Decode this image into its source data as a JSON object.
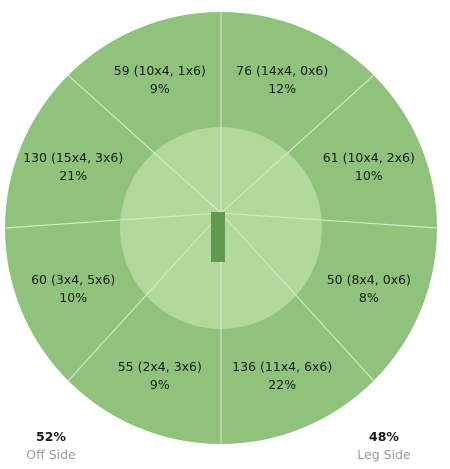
{
  "chart_data": {
    "type": "pie",
    "title": "",
    "segments": [
      {
        "runs": "76 (14x4, 0x6)",
        "pct": "12%",
        "value": 76,
        "fours": 14,
        "sixes": 0,
        "share": 12
      },
      {
        "runs": "61 (10x4, 2x6)",
        "pct": "10%",
        "value": 61,
        "fours": 10,
        "sixes": 2,
        "share": 10
      },
      {
        "runs": "50 (8x4, 0x6)",
        "pct": "8%",
        "value": 50,
        "fours": 8,
        "sixes": 0,
        "share": 8
      },
      {
        "runs": "136 (11x4, 6x6)",
        "pct": "22%",
        "value": 136,
        "fours": 11,
        "sixes": 6,
        "share": 22
      },
      {
        "runs": "55 (2x4, 3x6)",
        "pct": "9%",
        "value": 55,
        "fours": 2,
        "sixes": 3,
        "share": 9
      },
      {
        "runs": "60 (3x4, 5x6)",
        "pct": "10%",
        "value": 60,
        "fours": 3,
        "sixes": 5,
        "share": 10
      },
      {
        "runs": "130 (15x4, 3x6)",
        "pct": "21%",
        "value": 130,
        "fours": 15,
        "sixes": 3,
        "share": 21
      },
      {
        "runs": "59 (10x4, 1x6)",
        "pct": "9%",
        "value": 59,
        "fours": 10,
        "sixes": 1,
        "share": 9
      }
    ],
    "sides": {
      "off": {
        "pct": "52%",
        "label": "Off Side",
        "share": 52
      },
      "leg": {
        "pct": "48%",
        "label": "Leg Side",
        "share": 48
      }
    },
    "colors": {
      "outfield": "#8fc27a",
      "infield": "#b2d89c",
      "pitch": "#5e9a4f",
      "lines": "#d3e8c5"
    }
  }
}
